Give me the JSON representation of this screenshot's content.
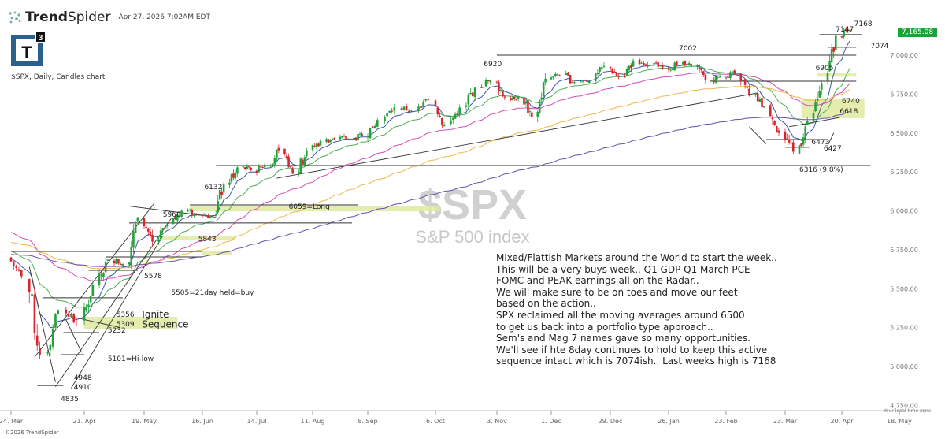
{
  "header": {
    "brand_prefix": "Trend",
    "brand_suffix": "Spider",
    "timestamp": "Apr 27, 2026 7:02AM EDT",
    "logo_text": "T",
    "logo_superscript": "3",
    "subtitle": "$SPX, Daily, Candles chart",
    "copyright": "©2026 TrendSpider",
    "timezone_note": "Your local time zone"
  },
  "watermark": {
    "symbol": "$SPX",
    "name": "S&P 500 index"
  },
  "last_price": "7,165.08",
  "colors": {
    "up": "#22a33a",
    "down": "#d8262f",
    "last_price_bg": "#1fa13a",
    "zone": "#dfeaa0",
    "ema8": "#3a56a5",
    "ema21": "#4caf50",
    "ma50": "#d64bb4",
    "ma100": "#f0b84a",
    "ma200": "#6a4fb0"
  },
  "commentary": [
    "Mixed/Flattish Markets around the World to start the week..",
    "This will be a very buys week.. Q1 GDP Q1 March PCE",
    "FOMC and PEAK earnings all on the Radar..",
    "We will make sure to be on toes and move our feet",
    "based on the action..",
    "SPX reclaimed all the moving averages around 6500",
    "to get us back into a portfolio type approach..",
    "Sem's and Mag 7 names gave so many opportunities.",
    "We'll see if hte 8day continues to hold to keep this active",
    "sequence intact which is 7074ish.. Last weeks high is 7168"
  ],
  "chart_data": {
    "type": "candlestick",
    "title": "$SPX, Daily, Candles chart",
    "start_week": "2025-03-24",
    "start_price": 5700,
    "weekly_closes": [
      5580,
      5074,
      5363,
      5283,
      5525,
      5686,
      5660,
      5958,
      5802,
      5912,
      6000,
      5977,
      5967,
      6173,
      6279,
      6260,
      6297,
      6389,
      6238,
      6389,
      6449,
      6466,
      6460,
      6481,
      6584,
      6664,
      6643,
      6715,
      6552,
      6664,
      6791,
      6840,
      6728,
      6734,
      6603,
      6849,
      6870,
      6827,
      6834,
      6930,
      6858,
      6966,
      6940,
      6915,
      6940,
      6930,
      6840,
      6860,
      6880,
      6740,
      6670,
      6500,
      6380,
      6580,
      6820,
      7125,
      7165
    ],
    "ylim": [
      4750,
      7200
    ],
    "y_ticks": [
      "7,000.00",
      "6,750.00",
      "6,500.00",
      "6,250.00",
      "6,000.00",
      "5,750.00",
      "5,500.00",
      "5,250.00",
      "5,000.00",
      "4,750.00"
    ],
    "y_tick_values": [
      7000,
      6750,
      6500,
      6250,
      6000,
      5750,
      5500,
      5250,
      5000,
      4750
    ],
    "x_ticks": [
      "24. Mar",
      "21. Apr",
      "19. May",
      "16. Jun",
      "14. Jul",
      "11. Aug",
      "8. Sep",
      "6. Oct",
      "3. Nov",
      "1. Dec",
      "29. Dec",
      "26. Jan",
      "23. Feb",
      "23. Mar",
      "20. Apr",
      "18. May"
    ],
    "moving_averages": [
      {
        "key": "ema8",
        "period": 8,
        "init": 5700
      },
      {
        "key": "ema21",
        "period": 21,
        "init": 5750
      },
      {
        "key": "ma50",
        "period": 50,
        "init": 5870
      },
      {
        "key": "ma100",
        "period": 100,
        "init": 5800
      },
      {
        "key": "ma200",
        "period": 200,
        "init": 5720
      }
    ],
    "levels": [
      {
        "from": "2026-04-09",
        "to": "2026-04-30",
        "price": 7132
      },
      {
        "from": "2026-04-13",
        "to": "2026-04-27",
        "price": 7051
      },
      {
        "from": "2025-11-03",
        "to": "2026-04-27",
        "price": 7000
      },
      {
        "from": "2026-02-15",
        "to": "2026-04-27",
        "price": 6833
      },
      {
        "from": "2026-03-14",
        "to": "2026-04-13",
        "price": 6458
      },
      {
        "from": "2026-03-23",
        "to": "2026-04-04",
        "price": 6408
      },
      {
        "from": "2025-06-23",
        "to": "2026-05-04",
        "price": 6291
      },
      {
        "from": "2025-06-10",
        "to": "2025-09-03",
        "price": 6038
      },
      {
        "from": "2025-05-12",
        "to": "2025-08-31",
        "price": 5922
      },
      {
        "from": "2025-03-24",
        "to": "2025-06-16",
        "price": 5739
      },
      {
        "from": "2025-05-01",
        "to": "2025-06-16",
        "price": 5704
      },
      {
        "from": "2025-04-23",
        "to": "2025-05-16",
        "price": 5618
      },
      {
        "from": "2025-04-05",
        "to": "2025-05-09",
        "price": 5441
      },
      {
        "from": "2025-04-13",
        "to": "2025-04-28",
        "price": 5218
      },
      {
        "from": "2025-04-12",
        "to": "2025-04-21",
        "price": 5076
      },
      {
        "from": "2025-04-03",
        "to": "2025-04-13",
        "price": 4878
      }
    ],
    "trendlines": [
      {
        "from": [
          "2025-07-24",
          6210
        ],
        "to": [
          "2026-03-10",
          6757
        ]
      },
      {
        "from": [
          "2026-03-25",
          6540
        ],
        "to": [
          "2026-04-19",
          6600
        ]
      },
      {
        "from": [
          "2025-05-12",
          6030
        ],
        "to": [
          "2025-06-23",
          5960
        ]
      },
      {
        "from": [
          "2025-04-02",
          5060
        ],
        "to": [
          "2025-05-24",
          6050
        ]
      },
      {
        "from": [
          "2025-04-10",
          4870
        ],
        "to": [
          "2025-06-01",
          5950
        ]
      },
      {
        "from": [
          "2025-04-16",
          4860
        ],
        "to": [
          "2025-05-28",
          5840
        ]
      },
      {
        "from": [
          "2025-03-31",
          5640
        ],
        "to": [
          "2025-04-10",
          4900
        ]
      },
      {
        "from": [
          "2025-04-14",
          5300
        ],
        "to": [
          "2025-04-20",
          5090
        ]
      },
      {
        "from": [
          "2025-04-16",
          5320
        ],
        "to": [
          "2025-05-08",
          5250
        ]
      },
      {
        "from": [
          "2026-03-06",
          6540
        ],
        "to": [
          "2026-03-14",
          6430
        ]
      },
      {
        "from": [
          "2026-04-13",
          6420
        ],
        "to": [
          "2026-04-16",
          6500
        ]
      }
    ],
    "zones": [
      {
        "from": "2025-06-10",
        "to": "2025-10-08",
        "low": 5997,
        "high": 6028
      },
      {
        "from": "2025-05-27",
        "to": "2025-07-03",
        "low": 5810,
        "high": 5835
      },
      {
        "from": "2025-06-16",
        "to": "2025-07-01",
        "low": 5714,
        "high": 5739
      },
      {
        "from": "2025-04-21",
        "to": "2025-06-04",
        "low": 5238,
        "high": 5319
      },
      {
        "from": "2026-03-31",
        "to": "2026-05-01",
        "low": 6595,
        "high": 6722
      },
      {
        "from": "2026-04-08",
        "to": "2026-04-27",
        "low": 6862,
        "high": 6885
      }
    ],
    "labels": [
      {
        "text": "7168",
        "date": "2026-04-26",
        "price": 7187
      },
      {
        "text": "7147",
        "date": "2026-04-17",
        "price": 7152
      },
      {
        "text": "7074",
        "date": "2026-05-04",
        "price": 7046
      },
      {
        "text": "7002",
        "date": "2026-01-31",
        "price": 7030
      },
      {
        "text": "6920",
        "date": "2025-10-28",
        "price": 6929
      },
      {
        "text": "6905",
        "date": "2026-04-07",
        "price": 6904
      },
      {
        "text": "6740",
        "date": "2026-04-20",
        "price": 6691
      },
      {
        "text": "6618",
        "date": "2026-04-19",
        "price": 6625
      },
      {
        "text": "6473",
        "date": "2026-04-05",
        "price": 6428
      },
      {
        "text": "6427",
        "date": "2026-04-11",
        "price": 6387
      },
      {
        "text": "6316 (9.8%)",
        "date": "2026-03-30",
        "price": 6250
      },
      {
        "text": "6132",
        "date": "2025-06-17",
        "price": 6139
      },
      {
        "text": "6059=Long",
        "date": "2025-07-30",
        "price": 6013
      },
      {
        "text": "5968",
        "date": "2025-05-28",
        "price": 5962
      },
      {
        "text": "5843",
        "date": "2025-06-14",
        "price": 5805
      },
      {
        "text": "5578",
        "date": "2025-05-19",
        "price": 5567
      },
      {
        "text": "5505=21day held=buy",
        "date": "2025-06-01",
        "price": 5461
      },
      {
        "text": "5356",
        "date": "2025-05-06",
        "price": 5319
      },
      {
        "text": "5309",
        "date": "2025-05-06",
        "price": 5258
      },
      {
        "text": "Ignite",
        "date": "2025-05-18",
        "price": 5315,
        "big": true
      },
      {
        "text": "Sequence",
        "date": "2025-05-18",
        "price": 5250,
        "big": true
      },
      {
        "text": "5232",
        "date": "2025-05-02",
        "price": 5218
      },
      {
        "text": "5101=Hi-low",
        "date": "2025-05-02",
        "price": 5035
      },
      {
        "text": "4948",
        "date": "2025-04-17",
        "price": 4914
      },
      {
        "text": "4910",
        "date": "2025-04-17",
        "price": 4853
      },
      {
        "text": "4835",
        "date": "2025-04-12",
        "price": 4777
      }
    ]
  }
}
